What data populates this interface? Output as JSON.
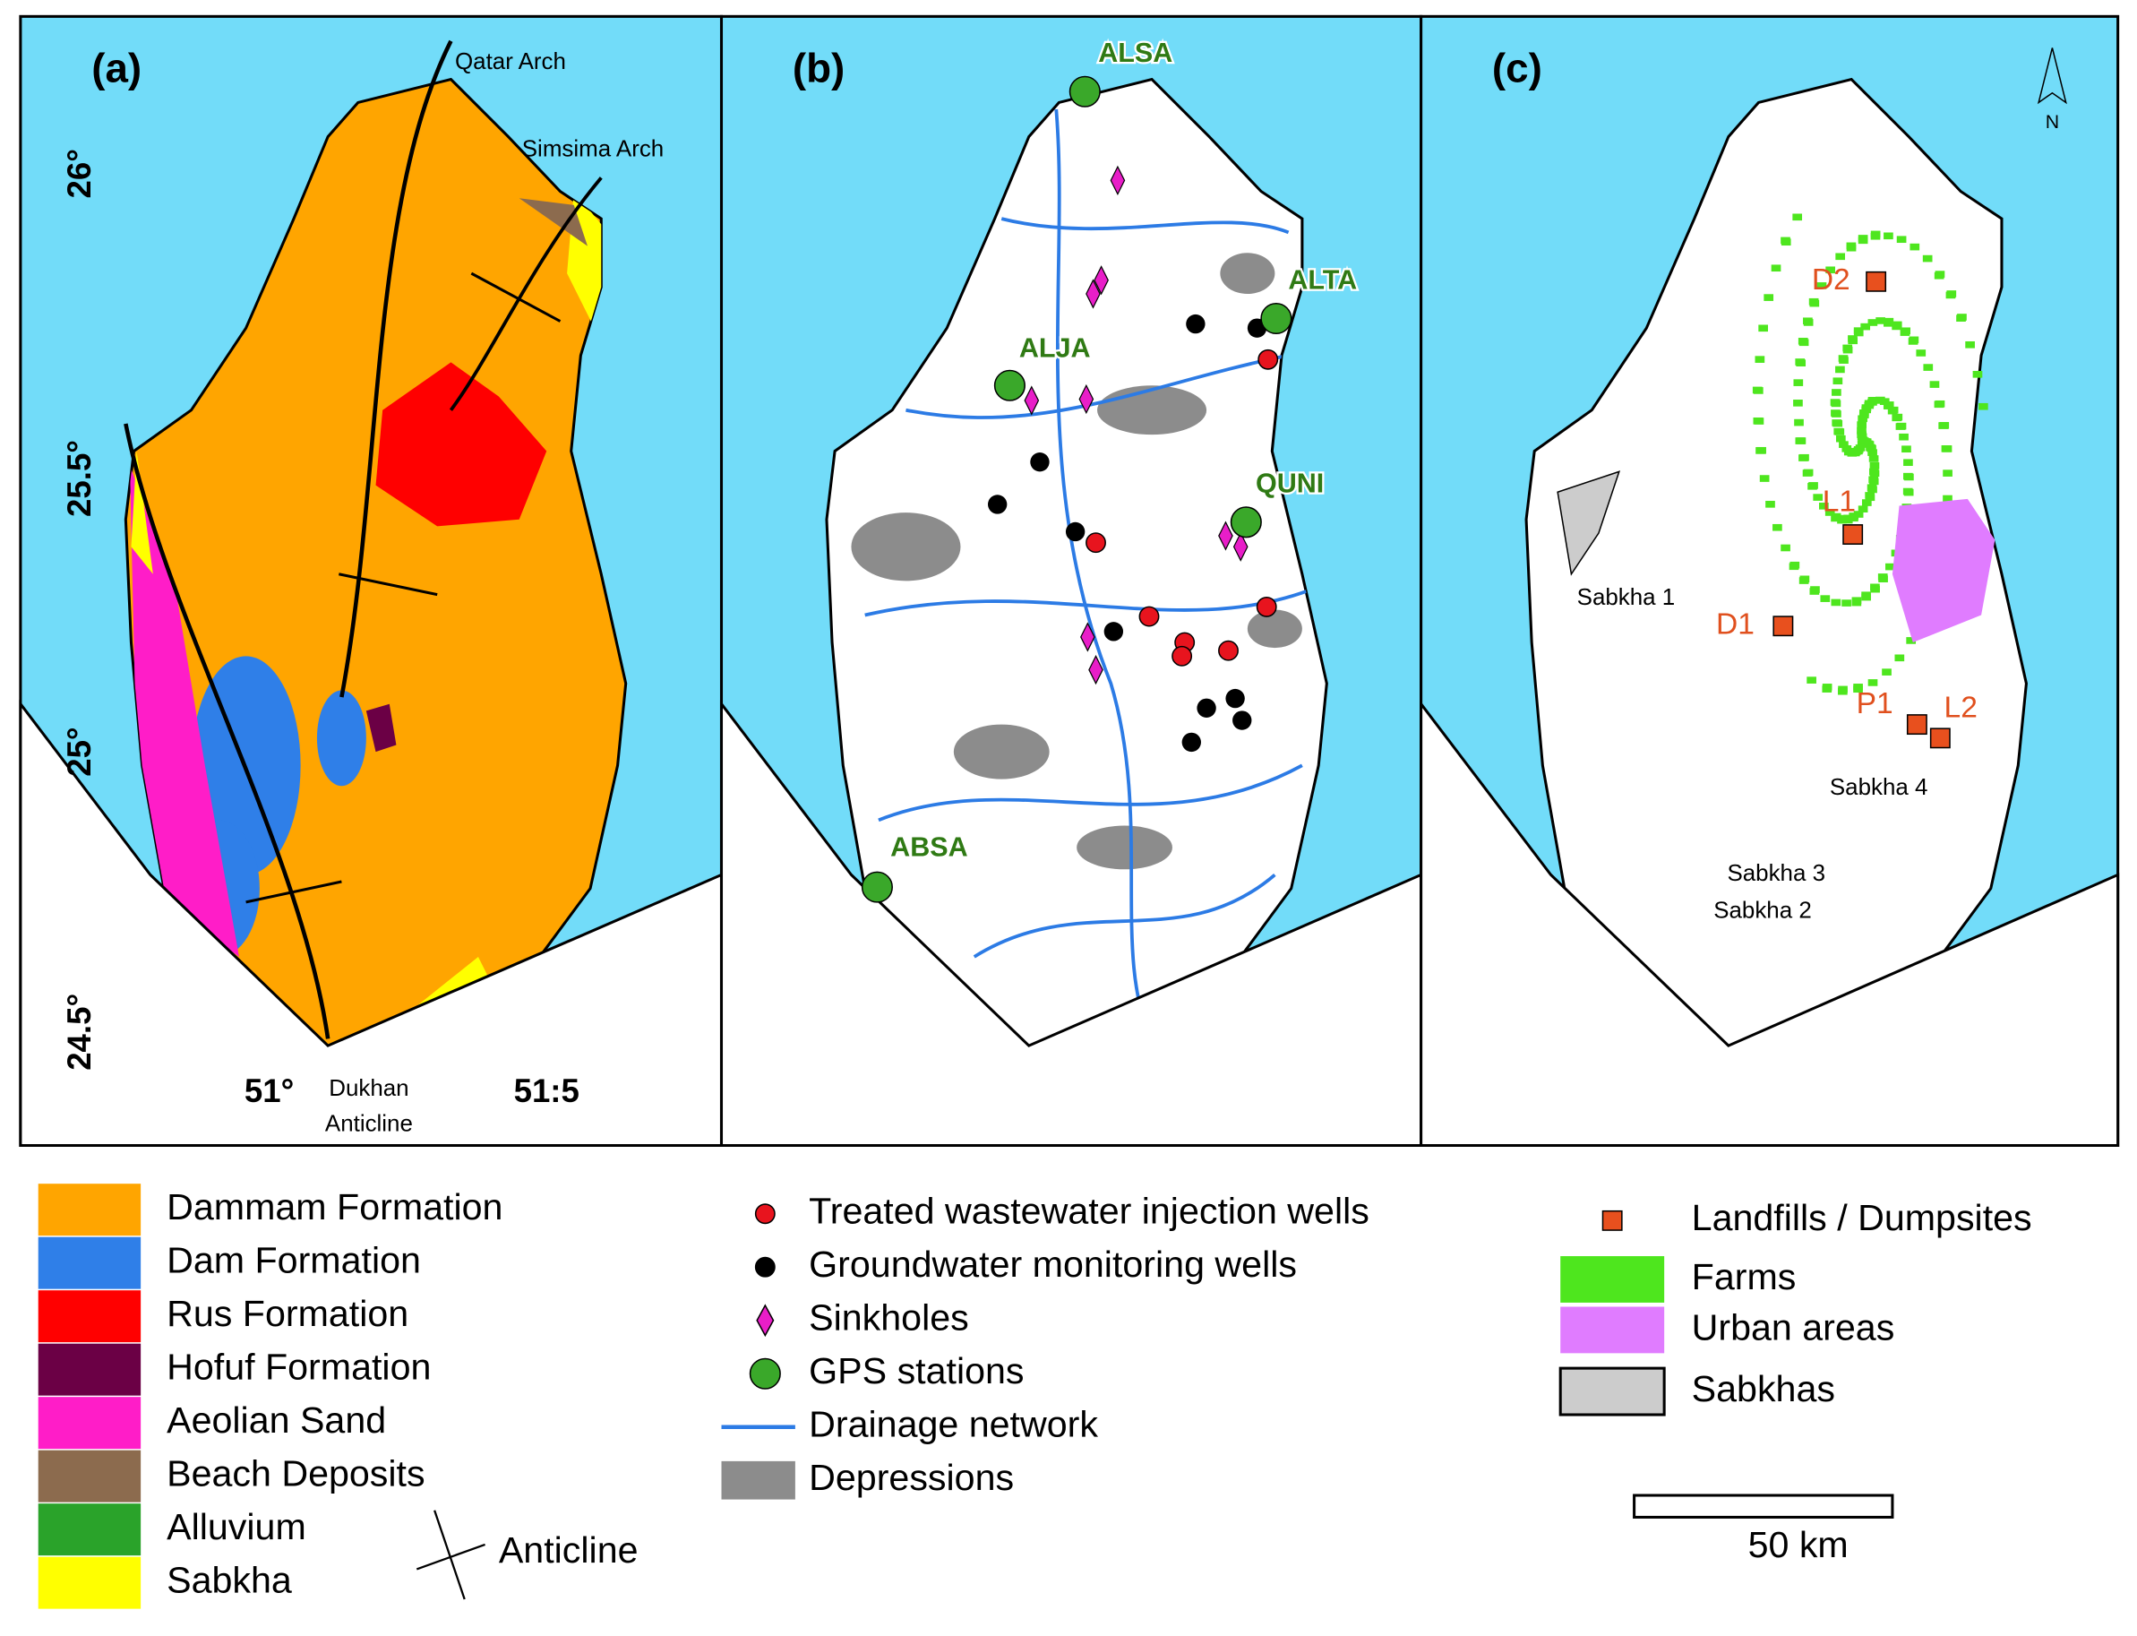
{
  "panels": [
    {
      "label": "(a)"
    },
    {
      "label": "(b)"
    },
    {
      "label": "(c)"
    }
  ],
  "panel_a": {
    "annotations": {
      "qatar_arch": "Qatar Arch",
      "simsima_arch": "Simsima Arch",
      "dukhan_anticline": [
        "Dukhan",
        "Anticline"
      ]
    },
    "lat_labels": [
      "26°",
      "25.5°",
      "25°",
      "24.5°"
    ],
    "lon_labels": [
      "51°",
      "51:5"
    ]
  },
  "panel_b": {
    "gps_stations": [
      "ALSA",
      "ALTA",
      "ALJA",
      "QUNI",
      "ABSA"
    ]
  },
  "panel_c": {
    "north": "N",
    "landfills": [
      "D2",
      "L1",
      "D1",
      "P1",
      "L2"
    ],
    "sabkhas": [
      "Sabkha 1",
      "Sabkha 4",
      "Sabkha 3",
      "Sabkha 2"
    ]
  },
  "legend_a": {
    "items": [
      {
        "name": "Dammam Formation",
        "color": "#ffa500"
      },
      {
        "name": "Dam Formation",
        "color": "#2f7fe8"
      },
      {
        "name": "Rus Formation",
        "color": "#ff0000"
      },
      {
        "name": "Hofuf Formation",
        "color": "#6b0045"
      },
      {
        "name": "Aeolian Sand",
        "color": "#ff1dc8"
      },
      {
        "name": "Beach Deposits",
        "color": "#8c6b4e"
      },
      {
        "name": "Alluvium",
        "color": "#2aa32a"
      },
      {
        "name": "Sabkha",
        "color": "#ffff00"
      }
    ],
    "anticline": "Anticline"
  },
  "legend_b": {
    "items": [
      {
        "name": "Treated wastewater injection wells",
        "color": "#e8141e"
      },
      {
        "name": "Groundwater monitoring wells",
        "color": "#000000"
      },
      {
        "name": "Sinkholes",
        "color": "#e81ec8"
      },
      {
        "name": "GPS stations",
        "color": "#3aa82a"
      },
      {
        "name": "Drainage network",
        "color": "#2c7be5"
      },
      {
        "name": "Depressions",
        "color": "#8c8c8c"
      }
    ]
  },
  "legend_c": {
    "items": [
      {
        "name": "Landfills / Dumpsites",
        "color": "#e8501e"
      },
      {
        "name": "Farms",
        "color": "#4ee61e"
      },
      {
        "name": "Urban areas",
        "color": "#e07cff"
      },
      {
        "name": "Sabkhas",
        "color": "#cccccc"
      }
    ],
    "scale": "50 km"
  }
}
